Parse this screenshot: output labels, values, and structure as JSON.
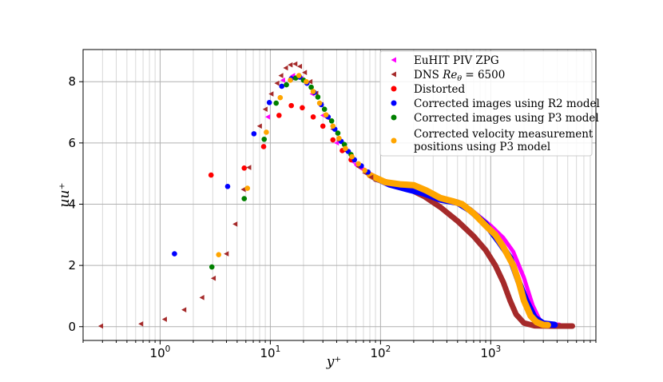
{
  "chart_data": {
    "type": "scatter",
    "x_scale": "log",
    "xlabel": "y⁺",
    "ylabel": "uu⁺",
    "xlim": [
      0.2,
      9000
    ],
    "ylim": [
      -0.45,
      9.05
    ],
    "grid": true,
    "legend_position": "top-right",
    "x_ticks": [
      {
        "value": 1,
        "base": "10",
        "exp": "0"
      },
      {
        "value": 10,
        "base": "10",
        "exp": "1"
      },
      {
        "value": 100,
        "base": "10",
        "exp": "2"
      },
      {
        "value": 1000,
        "base": "10",
        "exp": "3"
      }
    ],
    "y_ticks": [
      {
        "value": 0,
        "label": "0"
      },
      {
        "value": 2,
        "label": "2"
      },
      {
        "value": 4,
        "label": "4"
      },
      {
        "value": 6,
        "label": "6"
      },
      {
        "value": 8,
        "label": "8"
      }
    ],
    "series": [
      {
        "name": "EuHIT PIV ZPG",
        "color": "#ff00ff",
        "marker": "triangle-left",
        "points": [
          [
            9.5,
            6.85
          ],
          [
            13,
            8.05
          ],
          [
            16,
            8.2
          ],
          [
            19,
            8.1
          ],
          [
            24,
            7.6
          ],
          [
            30,
            6.9
          ],
          [
            40,
            6.0
          ],
          [
            55,
            5.4
          ]
        ],
        "curve": [
          [
            60,
            5.3
          ],
          [
            80,
            5.0
          ],
          [
            100,
            4.8
          ],
          [
            150,
            4.62
          ],
          [
            200,
            4.5
          ],
          [
            300,
            4.3
          ],
          [
            400,
            4.15
          ],
          [
            500,
            4.05
          ],
          [
            700,
            3.75
          ],
          [
            1000,
            3.3
          ],
          [
            1300,
            2.9
          ],
          [
            1600,
            2.45
          ],
          [
            2000,
            1.6
          ],
          [
            2400,
            0.7
          ],
          [
            2800,
            0.2
          ],
          [
            3300,
            0.08
          ],
          [
            4200,
            0.07
          ]
        ],
        "curve_width": 5
      },
      {
        "name": "DNS Re_θ = 6500",
        "label_prefix": "DNS ",
        "label_italic": "Re",
        "label_sub": "θ",
        "label_suffix": " = 6500",
        "color": "#a52a2a",
        "marker": "triangle-left",
        "points": [
          [
            0.29,
            0.02
          ],
          [
            0.67,
            0.09
          ],
          [
            1.1,
            0.24
          ],
          [
            1.65,
            0.55
          ],
          [
            2.4,
            0.95
          ],
          [
            3.05,
            1.58
          ],
          [
            4.0,
            2.38
          ],
          [
            4.8,
            3.35
          ],
          [
            5.7,
            4.48
          ],
          [
            6.4,
            5.2
          ],
          [
            8.0,
            6.55
          ],
          [
            9.0,
            7.1
          ],
          [
            10.2,
            7.6
          ],
          [
            11.5,
            7.95
          ],
          [
            12.5,
            8.2
          ],
          [
            13.8,
            8.45
          ],
          [
            15.2,
            8.55
          ],
          [
            16.8,
            8.58
          ],
          [
            18.5,
            8.5
          ],
          [
            20.5,
            8.3
          ],
          [
            23,
            8.0
          ],
          [
            26,
            7.62
          ],
          [
            29,
            7.25
          ],
          [
            33,
            6.82
          ],
          [
            37,
            6.45
          ],
          [
            42,
            6.08
          ],
          [
            48,
            5.75
          ],
          [
            55,
            5.45
          ],
          [
            63,
            5.22
          ],
          [
            72,
            5.02
          ],
          [
            82,
            4.88
          ]
        ],
        "curve": [
          [
            90,
            4.82
          ],
          [
            120,
            4.7
          ],
          [
            170,
            4.55
          ],
          [
            250,
            4.25
          ],
          [
            350,
            3.9
          ],
          [
            500,
            3.45
          ],
          [
            700,
            2.95
          ],
          [
            900,
            2.5
          ],
          [
            1100,
            2.0
          ],
          [
            1300,
            1.45
          ],
          [
            1500,
            0.85
          ],
          [
            1700,
            0.4
          ],
          [
            2000,
            0.12
          ],
          [
            2500,
            0.03
          ],
          [
            3500,
            0.02
          ],
          [
            5500,
            0.02
          ]
        ],
        "curve_width": 7
      },
      {
        "name": "Distorted",
        "color": "#ff0000",
        "marker": "circle",
        "points": [
          [
            2.9,
            4.95
          ],
          [
            5.8,
            5.18
          ],
          [
            8.7,
            5.88
          ],
          [
            12,
            6.9
          ],
          [
            15.5,
            7.22
          ],
          [
            19.5,
            7.15
          ],
          [
            24.5,
            6.85
          ],
          [
            30,
            6.55
          ],
          [
            37,
            6.1
          ],
          [
            45,
            5.75
          ],
          [
            54,
            5.45
          ]
        ],
        "curve": [],
        "curve_width": 0
      },
      {
        "name": "Corrected images using R2 model",
        "color": "#0000ff",
        "marker": "circle",
        "points": [
          [
            1.35,
            2.38
          ],
          [
            4.1,
            4.58
          ],
          [
            7.1,
            6.3
          ],
          [
            9.8,
            7.32
          ],
          [
            12.7,
            7.85
          ],
          [
            15.5,
            8.1
          ],
          [
            18.5,
            8.15
          ],
          [
            21.5,
            7.95
          ],
          [
            25,
            7.65
          ],
          [
            29,
            7.25
          ],
          [
            33.5,
            6.85
          ],
          [
            38.5,
            6.45
          ],
          [
            44,
            6.05
          ],
          [
            51,
            5.72
          ],
          [
            58,
            5.45
          ],
          [
            67,
            5.25
          ],
          [
            77,
            5.05
          ]
        ],
        "curve": [
          [
            85,
            4.9
          ],
          [
            120,
            4.65
          ],
          [
            170,
            4.5
          ],
          [
            250,
            4.35
          ],
          [
            350,
            4.15
          ],
          [
            500,
            4.05
          ],
          [
            650,
            3.8
          ],
          [
            900,
            3.35
          ],
          [
            1200,
            2.75
          ],
          [
            1500,
            2.25
          ],
          [
            1800,
            1.45
          ],
          [
            2100,
            0.85
          ],
          [
            2500,
            0.3
          ],
          [
            3000,
            0.1
          ],
          [
            3800,
            0.06
          ]
        ],
        "curve_width": 8
      },
      {
        "name": "Corrected images using P3 model",
        "color": "#008000",
        "marker": "circle",
        "points": [
          [
            2.95,
            1.95
          ],
          [
            5.8,
            4.18
          ],
          [
            8.8,
            6.12
          ],
          [
            11.3,
            7.3
          ],
          [
            14,
            7.9
          ],
          [
            17,
            8.12
          ],
          [
            20,
            8.05
          ],
          [
            23.5,
            7.82
          ],
          [
            27,
            7.5
          ],
          [
            31,
            7.1
          ],
          [
            36,
            6.72
          ],
          [
            41,
            6.32
          ],
          [
            47,
            5.95
          ],
          [
            54,
            5.62
          ]
        ],
        "curve": [],
        "curve_width": 0
      },
      {
        "name": "Corrected velocity measurement\n positions using P3 model",
        "color": "#ffa500",
        "marker": "circle",
        "points": [
          [
            3.4,
            2.35
          ],
          [
            6.2,
            4.52
          ],
          [
            9.2,
            6.35
          ],
          [
            12.3,
            7.48
          ],
          [
            15.2,
            8.05
          ],
          [
            18.2,
            8.2
          ],
          [
            21.2,
            8.0
          ],
          [
            24.5,
            7.68
          ],
          [
            28,
            7.3
          ],
          [
            32,
            6.92
          ],
          [
            37,
            6.55
          ],
          [
            42,
            6.15
          ],
          [
            48,
            5.82
          ],
          [
            55,
            5.55
          ],
          [
            63,
            5.32
          ],
          [
            72,
            5.1
          ]
        ],
        "curve": [
          [
            80,
            4.95
          ],
          [
            110,
            4.72
          ],
          [
            150,
            4.65
          ],
          [
            200,
            4.62
          ],
          [
            260,
            4.45
          ],
          [
            350,
            4.2
          ],
          [
            450,
            4.1
          ],
          [
            550,
            4.0
          ],
          [
            700,
            3.7
          ],
          [
            900,
            3.3
          ],
          [
            1100,
            3.0
          ],
          [
            1300,
            2.6
          ],
          [
            1600,
            2.0
          ],
          [
            1800,
            1.45
          ],
          [
            2000,
            0.85
          ],
          [
            2300,
            0.35
          ],
          [
            2600,
            0.15
          ],
          [
            3000,
            0.06
          ],
          [
            3300,
            0.05
          ]
        ],
        "curve_width": 8
      }
    ]
  }
}
